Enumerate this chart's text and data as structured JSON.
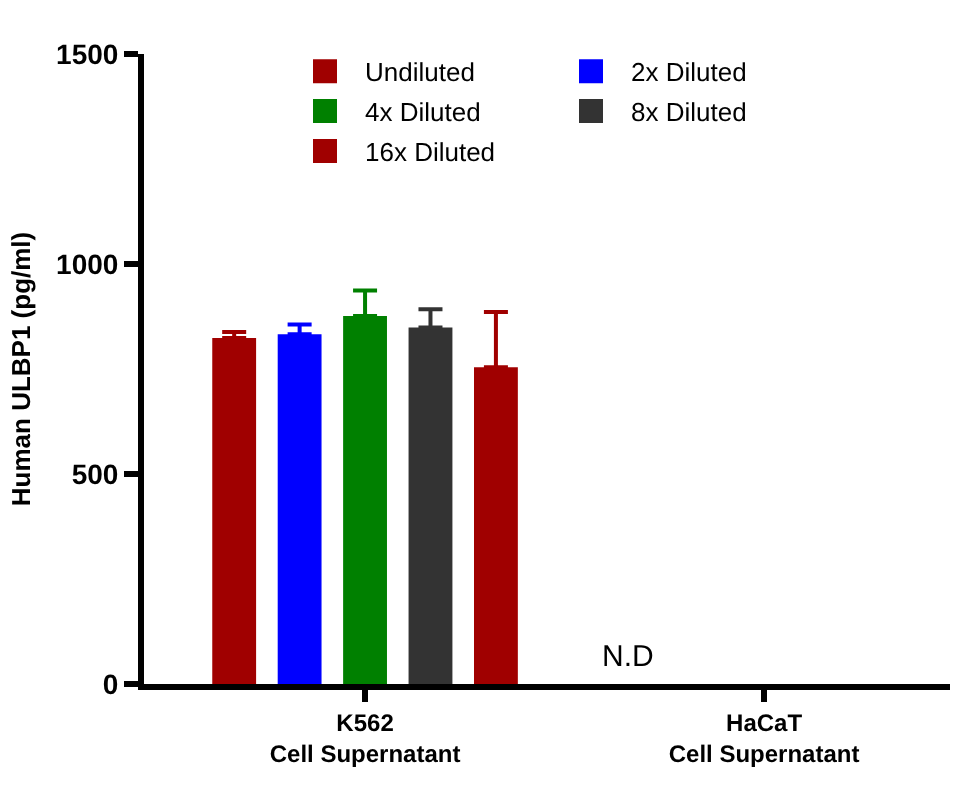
{
  "chart_data": {
    "type": "bar",
    "ylabel": "Human ULBP1 (pg/ml)",
    "categories": [
      "K562\nCell Supernatant",
      "HaCaT\nCell Supernatant"
    ],
    "series": [
      {
        "name": "Undiluted",
        "color": "#a00000",
        "values": [
          824,
          null
        ],
        "errors": [
          [
            824,
            838
          ],
          null
        ]
      },
      {
        "name": "2x Diluted",
        "color": "#0000ff",
        "values": [
          833,
          null
        ],
        "errors": [
          [
            833,
            856
          ],
          null
        ]
      },
      {
        "name": "4x Diluted",
        "color": "#008000",
        "values": [
          876,
          null
        ],
        "errors": [
          [
            876,
            937
          ],
          null
        ]
      },
      {
        "name": "8x Diluted",
        "color": "#333333",
        "values": [
          849,
          null
        ],
        "errors": [
          [
            849,
            892
          ],
          null
        ]
      },
      {
        "name": "16x Diluted",
        "color": "#a00000",
        "values": [
          754,
          null
        ],
        "errors": [
          [
            754,
            886
          ],
          null
        ]
      }
    ],
    "ylim": [
      0,
      1500
    ],
    "yticks": [
      0,
      500,
      1000,
      1500
    ],
    "grid": false,
    "legend": "top",
    "annotations": [
      "N.D"
    ]
  }
}
